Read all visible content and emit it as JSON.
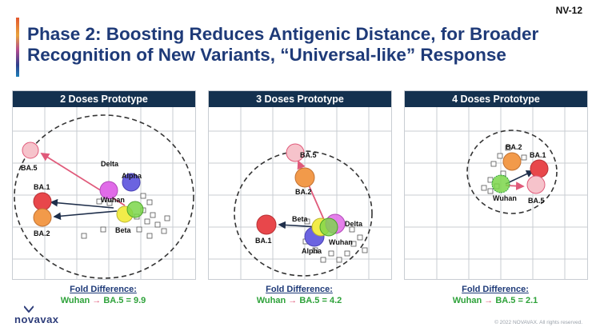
{
  "slide_id": "NV-12",
  "title": {
    "line1": "Phase 2: Boosting Reduces Antigenic Distance, for Broader",
    "line2": "Recognition of New Variants, “Universal-like” Response"
  },
  "colors": {
    "navy": "#14314f",
    "title_blue": "#1e3a78",
    "green": "#2ea23a",
    "pink": "#e05a7a",
    "ba5_fill": "#f6c3cb",
    "orange": "#f29a4a",
    "red": "#e8474b",
    "yellow": "#f2ec4a",
    "lime": "#7bd64a",
    "purple": "#6b63e0",
    "magenta": "#e06be8"
  },
  "panels": [
    {
      "heading": "2 Doses Prototype",
      "fold_title": "Fold Difference:",
      "fold_from": "Wuhan",
      "fold_arrow": "→",
      "fold_to": "BA.5",
      "fold_value": "= 9.9",
      "labels": {
        "ba5": "BA.5",
        "delta": "Delta",
        "alpha": "Alpha",
        "ba1": "BA.1",
        "wuhan": "Wuhan",
        "ba2": "BA.2",
        "beta": "Beta"
      }
    },
    {
      "heading": "3 Doses Prototype",
      "fold_title": "Fold Difference:",
      "fold_from": "Wuhan",
      "fold_arrow": "→",
      "fold_to": "BA.5",
      "fold_value": "= 4.2",
      "labels": {
        "ba5": "BA.5",
        "ba2": "BA.2",
        "ba1": "BA.1",
        "beta": "Beta",
        "delta": "Delta",
        "wuhan": "Wuhan",
        "alpha": "Alpha"
      }
    },
    {
      "heading": "4 Doses Prototype",
      "fold_title": "Fold Difference:",
      "fold_from": "Wuhan",
      "fold_arrow": "→",
      "fold_to": "BA.5",
      "fold_value": "= 2.1",
      "labels": {
        "ba2": "BA.2",
        "ba1": "BA.1",
        "wuhan": "Wuhan",
        "ba5": "BA.5"
      }
    }
  ],
  "logo": "novavax",
  "copyright": "© 2022 NOVAVAX. All rights reserved."
}
